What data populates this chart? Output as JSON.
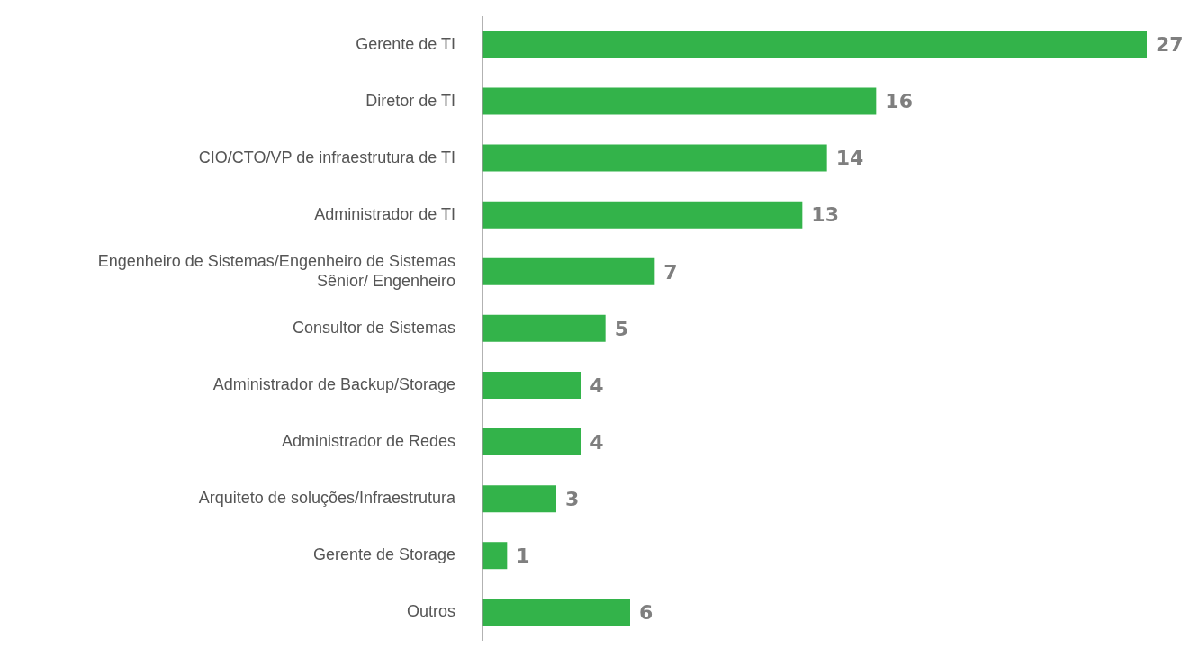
{
  "chart_data": {
    "type": "bar",
    "orientation": "horizontal",
    "data_labels": true,
    "categories": [
      "Gerente de TI",
      "Diretor de TI",
      "CIO/CTO/VP de infraestrutura de TI",
      "Administrador de TI",
      "Engenheiro de Sistemas/Engenheiro de Sistemas Sênior/ Engenheiro",
      "Consultor de Sistemas",
      "Administrador de Backup/Storage",
      "Administrador de Redes",
      "Arquiteto de soluções/Infraestrutura",
      "Gerente de Storage",
      "Outros"
    ],
    "values": [
      27,
      16,
      14,
      13,
      7,
      5,
      4,
      4,
      3,
      1,
      6
    ],
    "color": "#33b34a",
    "grid": false,
    "legend": false
  }
}
